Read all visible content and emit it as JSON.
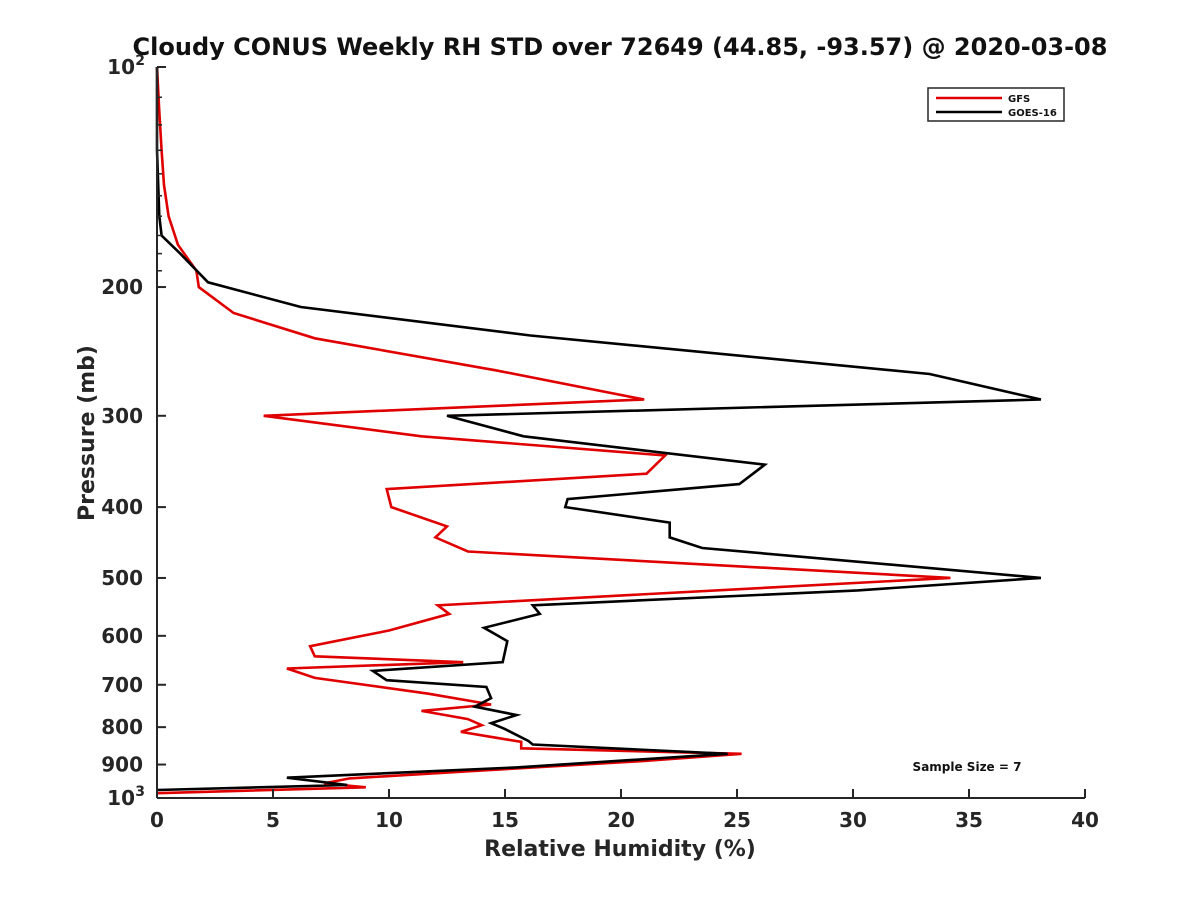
{
  "chart_data": {
    "type": "line",
    "title": "Cloudy CONUS Weekly RH STD over 72649 (44.85, -93.57) @ 2020-03-08",
    "xlabel": "Relative Humidity (%)",
    "ylabel": "Pressure (mb)",
    "xlim": [
      0,
      40
    ],
    "ylim": [
      100,
      1000
    ],
    "y_scale": "log",
    "y_reversed": true,
    "x_ticks": [
      "0",
      "5",
      "10",
      "15",
      "20",
      "25",
      "30",
      "35",
      "40"
    ],
    "x_tick_values": [
      0,
      5,
      10,
      15,
      20,
      25,
      30,
      35,
      40
    ],
    "y_ticks": [
      "200",
      "300",
      "400",
      "500",
      "600",
      "700",
      "800",
      "900"
    ],
    "y_tick_values": [
      200,
      300,
      400,
      500,
      600,
      700,
      800,
      900
    ],
    "y_end_ticks": [
      {
        "base": "10",
        "exp": "2",
        "value": 100
      },
      {
        "base": "10",
        "exp": "3",
        "value": 1000
      }
    ],
    "legend_position": "top-right",
    "annotation": "Sample Size = 7",
    "series": [
      {
        "name": "GFS",
        "color": "#e00000",
        "points": [
          [
            0.0,
            100
          ],
          [
            0.1,
            115
          ],
          [
            0.2,
            130
          ],
          [
            0.3,
            145
          ],
          [
            0.5,
            160
          ],
          [
            0.9,
            175
          ],
          [
            1.7,
            190
          ],
          [
            1.8,
            200
          ],
          [
            3.3,
            217
          ],
          [
            6.8,
            235
          ],
          [
            14.6,
            260
          ],
          [
            21.0,
            285
          ],
          [
            4.6,
            300
          ],
          [
            11.4,
            320
          ],
          [
            21.9,
            340
          ],
          [
            21.1,
            360
          ],
          [
            9.9,
            378
          ],
          [
            10.1,
            400
          ],
          [
            12.5,
            425
          ],
          [
            12.0,
            440
          ],
          [
            13.4,
            460
          ],
          [
            34.2,
            500
          ],
          [
            12.1,
            545
          ],
          [
            12.6,
            560
          ],
          [
            10.0,
            590
          ],
          [
            6.6,
            620
          ],
          [
            6.8,
            640
          ],
          [
            13.2,
            652
          ],
          [
            5.6,
            665
          ],
          [
            6.8,
            685
          ],
          [
            11.7,
            720
          ],
          [
            14.4,
            745
          ],
          [
            11.4,
            760
          ],
          [
            13.4,
            780
          ],
          [
            14.0,
            795
          ],
          [
            13.1,
            812
          ],
          [
            15.7,
            838
          ],
          [
            15.7,
            855
          ],
          [
            25.2,
            870
          ],
          [
            21.0,
            890
          ],
          [
            13.3,
            920
          ],
          [
            8.3,
            940
          ],
          [
            7.2,
            955
          ],
          [
            9.0,
            967
          ],
          [
            0.0,
            985
          ]
        ]
      },
      {
        "name": "GOES-16",
        "color": "#000000",
        "points": [
          [
            0.0,
            100
          ],
          [
            0.0,
            130
          ],
          [
            0.1,
            160
          ],
          [
            0.2,
            170
          ],
          [
            1.0,
            180
          ],
          [
            2.2,
            197
          ],
          [
            6.2,
            213
          ],
          [
            16.1,
            233
          ],
          [
            33.3,
            263
          ],
          [
            38.1,
            285
          ],
          [
            12.5,
            300
          ],
          [
            15.8,
            320
          ],
          [
            26.2,
            350
          ],
          [
            25.1,
            372
          ],
          [
            17.7,
            390
          ],
          [
            17.6,
            400
          ],
          [
            22.1,
            420
          ],
          [
            22.1,
            440
          ],
          [
            23.5,
            455
          ],
          [
            38.1,
            500
          ],
          [
            30.2,
            520
          ],
          [
            16.2,
            545
          ],
          [
            16.5,
            560
          ],
          [
            14.1,
            585
          ],
          [
            15.1,
            610
          ],
          [
            14.9,
            652
          ],
          [
            9.3,
            670
          ],
          [
            9.9,
            690
          ],
          [
            14.2,
            705
          ],
          [
            14.4,
            730
          ],
          [
            13.7,
            750
          ],
          [
            15.5,
            770
          ],
          [
            14.4,
            790
          ],
          [
            15.0,
            805
          ],
          [
            16.0,
            835
          ],
          [
            16.2,
            845
          ],
          [
            24.6,
            870
          ],
          [
            15.5,
            908
          ],
          [
            5.6,
            938
          ],
          [
            8.2,
            960
          ],
          [
            0.0,
            975
          ]
        ]
      }
    ]
  }
}
